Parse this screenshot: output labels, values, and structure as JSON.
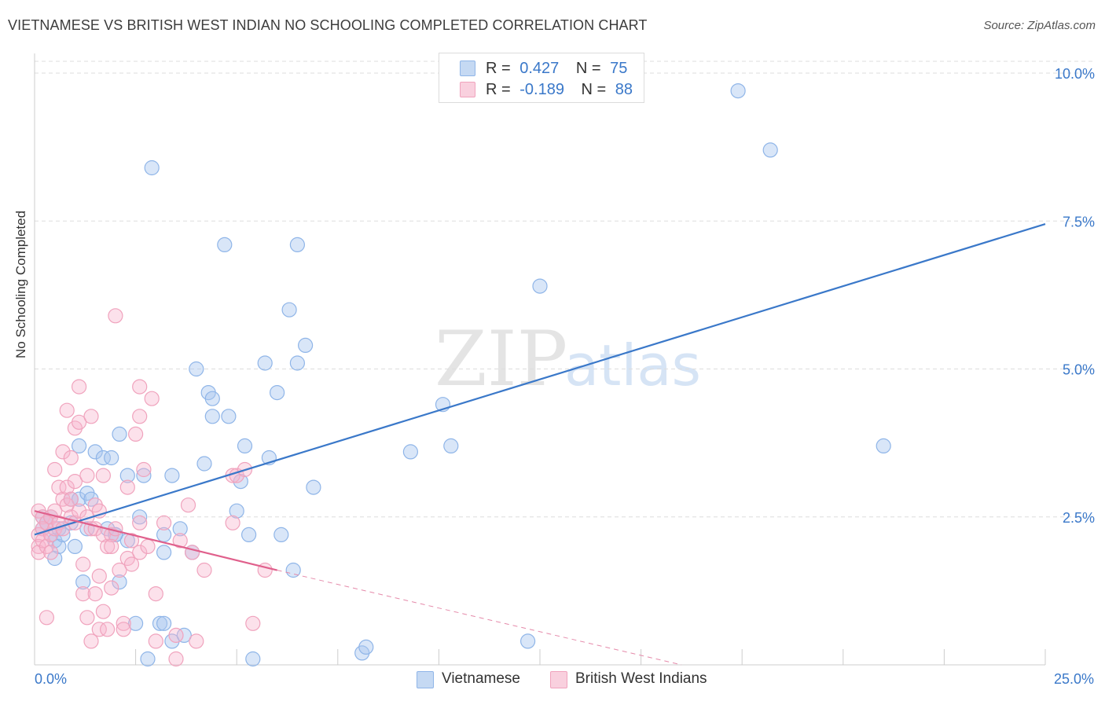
{
  "title": "VIETNAMESE VS BRITISH WEST INDIAN NO SCHOOLING COMPLETED CORRELATION CHART",
  "source": "Source: ZipAtlas.com",
  "watermark": {
    "zip": "ZIP",
    "atlas": "atlas"
  },
  "legend": {
    "rows": [
      {
        "r_label": "R =",
        "r_value": "0.427",
        "n_label": "N =",
        "n_value": "75",
        "color": "#8fb5e8",
        "fill": "#c5d9f3"
      },
      {
        "r_label": "R =",
        "r_value": "-0.189",
        "n_label": "N =",
        "n_value": "88",
        "color": "#f0a3bd",
        "fill": "#f9d0de"
      }
    ]
  },
  "bottom_legend": [
    {
      "label": "Vietnamese",
      "color": "#8fb5e8",
      "fill": "#c5d9f3"
    },
    {
      "label": "British West Indians",
      "color": "#f0a3bd",
      "fill": "#f9d0de"
    }
  ],
  "chart_data": {
    "type": "scatter",
    "title": "VIETNAMESE VS BRITISH WEST INDIAN NO SCHOOLING COMPLETED CORRELATION CHART",
    "xlabel": "",
    "ylabel": "No Schooling Completed",
    "xlim": [
      0,
      25
    ],
    "ylim": [
      0,
      10.2
    ],
    "x_tick_labels": [
      "0.0%",
      "25.0%"
    ],
    "y_ticks": [
      2.5,
      5.0,
      7.5,
      10.0
    ],
    "y_tick_labels": [
      "2.5%",
      "5.0%",
      "7.5%",
      "10.0%"
    ],
    "grid": true,
    "legend_position": "top-center",
    "series": [
      {
        "name": "Vietnamese",
        "color": "#3a78c9",
        "point_color": "#8fb5e8",
        "trend": {
          "x": [
            0.0,
            25.0
          ],
          "y": [
            2.2,
            7.45
          ],
          "dashed_extension": false
        },
        "points": [
          [
            0.2,
            2.3
          ],
          [
            0.2,
            2.5
          ],
          [
            0.3,
            2.4
          ],
          [
            0.4,
            2.2
          ],
          [
            0.5,
            1.8
          ],
          [
            0.5,
            2.1
          ],
          [
            0.6,
            2.3
          ],
          [
            0.6,
            2.0
          ],
          [
            0.9,
            2.8
          ],
          [
            0.9,
            2.4
          ],
          [
            1.0,
            2.0
          ],
          [
            1.1,
            3.7
          ],
          [
            1.1,
            2.8
          ],
          [
            1.2,
            1.4
          ],
          [
            1.3,
            2.9
          ],
          [
            1.4,
            2.8
          ],
          [
            1.5,
            3.6
          ],
          [
            1.7,
            3.5
          ],
          [
            1.8,
            2.3
          ],
          [
            1.9,
            3.5
          ],
          [
            2.0,
            2.2
          ],
          [
            2.1,
            1.4
          ],
          [
            2.1,
            3.9
          ],
          [
            2.3,
            2.1
          ],
          [
            2.3,
            3.2
          ],
          [
            2.5,
            0.7
          ],
          [
            2.6,
            2.5
          ],
          [
            2.7,
            3.2
          ],
          [
            2.8,
            0.1
          ],
          [
            2.9,
            8.4
          ],
          [
            3.1,
            0.7
          ],
          [
            3.2,
            0.7
          ],
          [
            3.2,
            1.9
          ],
          [
            3.2,
            2.2
          ],
          [
            3.4,
            0.4
          ],
          [
            3.4,
            3.2
          ],
          [
            3.6,
            2.3
          ],
          [
            3.7,
            0.5
          ],
          [
            3.9,
            1.9
          ],
          [
            4.0,
            5.0
          ],
          [
            4.2,
            3.4
          ],
          [
            4.3,
            4.6
          ],
          [
            4.4,
            4.5
          ],
          [
            4.4,
            4.2
          ],
          [
            4.7,
            7.1
          ],
          [
            4.8,
            4.2
          ],
          [
            5.0,
            2.6
          ],
          [
            5.1,
            3.1
          ],
          [
            5.2,
            3.7
          ],
          [
            5.3,
            2.2
          ],
          [
            5.4,
            0.1
          ],
          [
            5.7,
            5.1
          ],
          [
            5.8,
            3.5
          ],
          [
            6.0,
            4.6
          ],
          [
            6.1,
            2.2
          ],
          [
            6.3,
            6.0
          ],
          [
            6.4,
            1.6
          ],
          [
            6.5,
            5.1
          ],
          [
            6.5,
            7.1
          ],
          [
            6.7,
            5.4
          ],
          [
            6.9,
            3.0
          ],
          [
            8.1,
            0.2
          ],
          [
            8.2,
            0.3
          ],
          [
            9.3,
            3.6
          ],
          [
            10.1,
            4.4
          ],
          [
            10.3,
            3.7
          ],
          [
            12.2,
            0.4
          ],
          [
            12.5,
            6.4
          ],
          [
            17.4,
            9.7
          ],
          [
            18.2,
            8.7
          ],
          [
            21.0,
            3.7
          ],
          [
            1.3,
            2.3
          ],
          [
            0.7,
            2.2
          ],
          [
            2.0,
            2.2
          ],
          [
            0.4,
            2.5
          ]
        ]
      },
      {
        "name": "British West Indians",
        "color": "#e0608c",
        "point_color": "#f0a3bd",
        "trend": {
          "x": [
            0.0,
            6.0
          ],
          "y": [
            2.6,
            1.6
          ],
          "dashed_to": [
            16.0,
            0.0
          ]
        },
        "points": [
          [
            0.1,
            2.6
          ],
          [
            0.1,
            2.2
          ],
          [
            0.1,
            2.0
          ],
          [
            0.1,
            1.9
          ],
          [
            0.2,
            2.5
          ],
          [
            0.2,
            2.3
          ],
          [
            0.2,
            2.1
          ],
          [
            0.3,
            2.4
          ],
          [
            0.3,
            2.0
          ],
          [
            0.4,
            2.5
          ],
          [
            0.4,
            2.2
          ],
          [
            0.4,
            1.9
          ],
          [
            0.5,
            3.3
          ],
          [
            0.5,
            2.6
          ],
          [
            0.5,
            2.3
          ],
          [
            0.6,
            3.0
          ],
          [
            0.6,
            2.4
          ],
          [
            0.7,
            3.6
          ],
          [
            0.7,
            2.8
          ],
          [
            0.7,
            2.3
          ],
          [
            0.8,
            4.3
          ],
          [
            0.8,
            3.0
          ],
          [
            0.8,
            2.7
          ],
          [
            0.9,
            3.5
          ],
          [
            0.9,
            2.8
          ],
          [
            0.9,
            2.5
          ],
          [
            1.0,
            4.0
          ],
          [
            1.0,
            3.1
          ],
          [
            1.0,
            2.4
          ],
          [
            1.1,
            4.7
          ],
          [
            1.1,
            4.1
          ],
          [
            1.1,
            2.6
          ],
          [
            1.2,
            1.7
          ],
          [
            1.2,
            1.2
          ],
          [
            1.3,
            3.2
          ],
          [
            1.3,
            2.5
          ],
          [
            1.3,
            0.8
          ],
          [
            1.4,
            4.2
          ],
          [
            1.4,
            2.3
          ],
          [
            1.4,
            0.4
          ],
          [
            1.5,
            2.7
          ],
          [
            1.5,
            2.3
          ],
          [
            1.5,
            1.2
          ],
          [
            1.6,
            2.6
          ],
          [
            1.6,
            1.5
          ],
          [
            1.6,
            0.6
          ],
          [
            1.7,
            3.2
          ],
          [
            1.7,
            2.2
          ],
          [
            1.7,
            0.9
          ],
          [
            1.8,
            2.0
          ],
          [
            1.8,
            0.6
          ],
          [
            1.9,
            2.2
          ],
          [
            1.9,
            2.0
          ],
          [
            1.9,
            1.3
          ],
          [
            2.0,
            5.9
          ],
          [
            2.0,
            2.3
          ],
          [
            2.1,
            1.6
          ],
          [
            2.2,
            0.7
          ],
          [
            2.2,
            0.6
          ],
          [
            2.3,
            3.0
          ],
          [
            2.3,
            1.8
          ],
          [
            2.4,
            2.1
          ],
          [
            2.4,
            1.7
          ],
          [
            2.5,
            3.9
          ],
          [
            2.6,
            4.7
          ],
          [
            2.6,
            4.2
          ],
          [
            2.6,
            2.4
          ],
          [
            2.6,
            1.9
          ],
          [
            2.7,
            3.3
          ],
          [
            2.8,
            2.0
          ],
          [
            2.9,
            4.5
          ],
          [
            3.0,
            1.2
          ],
          [
            3.0,
            0.4
          ],
          [
            3.2,
            2.4
          ],
          [
            3.5,
            0.5
          ],
          [
            3.5,
            0.1
          ],
          [
            3.6,
            2.1
          ],
          [
            3.8,
            2.7
          ],
          [
            3.9,
            1.9
          ],
          [
            4.0,
            0.4
          ],
          [
            4.2,
            1.6
          ],
          [
            4.9,
            2.4
          ],
          [
            4.9,
            3.2
          ],
          [
            5.0,
            3.2
          ],
          [
            5.2,
            3.3
          ],
          [
            5.4,
            0.7
          ],
          [
            5.7,
            1.6
          ],
          [
            0.3,
            0.8
          ]
        ]
      }
    ]
  }
}
